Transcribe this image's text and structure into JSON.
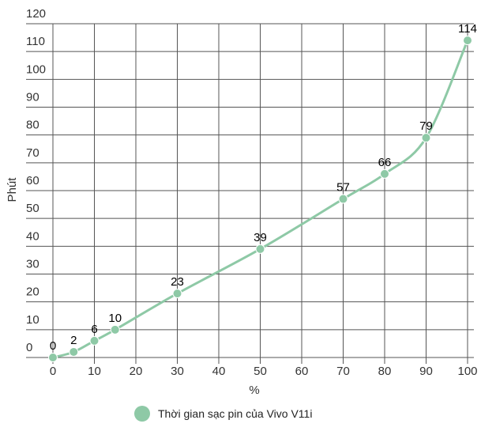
{
  "chart_data": {
    "type": "line",
    "x_label": "%",
    "y_label": "Phút",
    "x": [
      0,
      5,
      10,
      15,
      30,
      50,
      70,
      80,
      90,
      100
    ],
    "series": [
      {
        "name": "Thời gian sạc pin của Vivo V11i",
        "color": "#8ec9a6",
        "values": [
          0,
          2,
          6,
          10,
          23,
          39,
          57,
          66,
          79,
          114
        ]
      }
    ],
    "xlim": [
      0,
      100
    ],
    "xticks": [
      0,
      10,
      20,
      30,
      40,
      50,
      60,
      70,
      80,
      90,
      100
    ],
    "ylim": [
      0,
      120
    ],
    "yticks": [
      0,
      10,
      20,
      30,
      40,
      50,
      60,
      70,
      80,
      90,
      100,
      110,
      120
    ],
    "grid": true,
    "legend": "bottom"
  }
}
